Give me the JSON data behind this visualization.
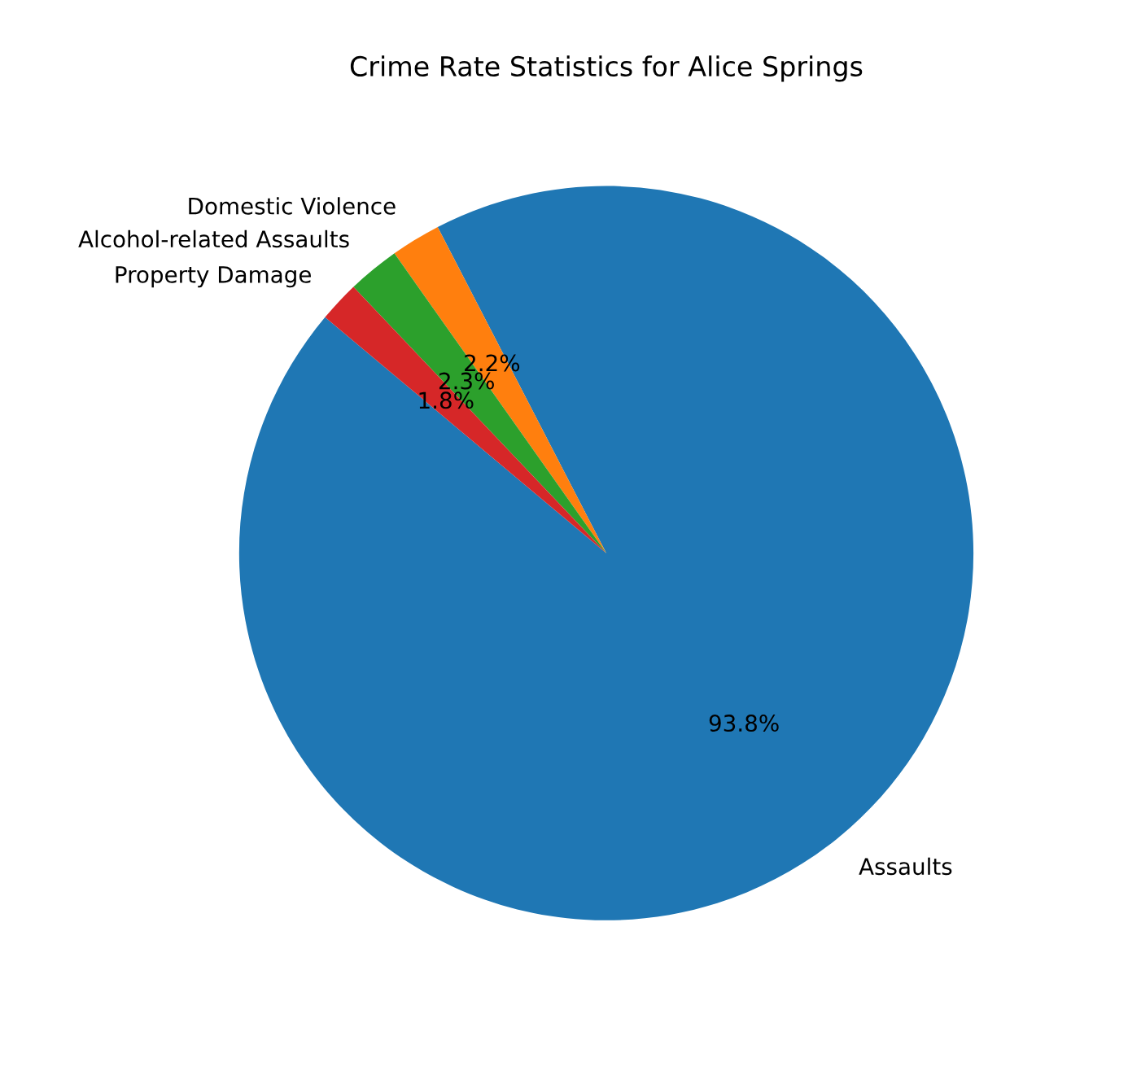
{
  "chart_data": {
    "type": "pie",
    "title": "Crime Rate Statistics for Alice Springs",
    "categories": [
      "Assaults",
      "Domestic Violence",
      "Alcohol-related Assaults",
      "Property Damage"
    ],
    "values": [
      93.8,
      2.2,
      2.3,
      1.8
    ],
    "colors": [
      "#1f77b4",
      "#ff7f0e",
      "#2ca02c",
      "#d62728"
    ],
    "value_labels": [
      "93.8%",
      "2.2%",
      "2.3%",
      "1.8%"
    ]
  }
}
